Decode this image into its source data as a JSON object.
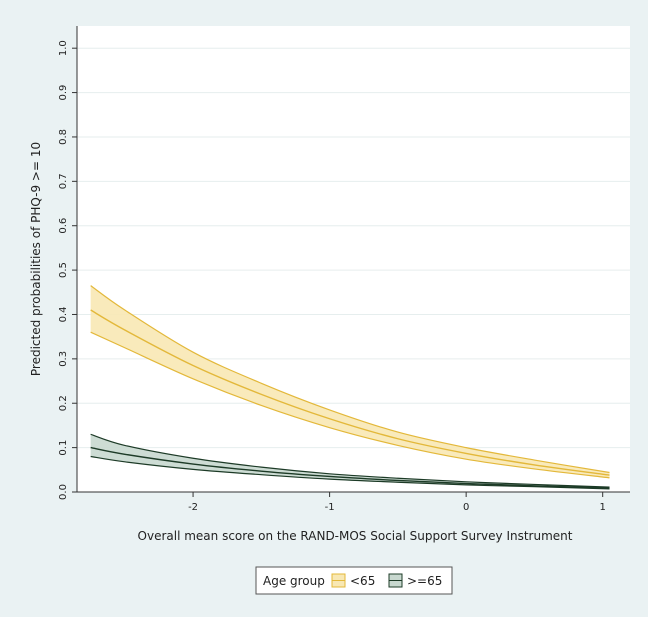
{
  "chart_data": {
    "type": "line",
    "title": "",
    "xlabel": "Overall mean score on the RAND-MOS Social Support Survey Instrument",
    "ylabel": "Predicted probabilities of PHQ-9 >= 10",
    "xlim": [
      -2.85,
      1.2
    ],
    "ylim": [
      0,
      1.05
    ],
    "xticks": [
      -2,
      -1,
      0,
      1
    ],
    "yticks": [
      0.0,
      0.1,
      0.2,
      0.3,
      0.4,
      0.5,
      0.6,
      0.7,
      0.8,
      0.9,
      1.0
    ],
    "xtick_labels": [
      "-2",
      "-1",
      "0",
      "1"
    ],
    "ytick_labels": [
      "0.0",
      "0.1",
      "0.2",
      "0.3",
      "0.4",
      "0.5",
      "0.6",
      "0.7",
      "0.8",
      "0.9",
      "1.0"
    ],
    "grid": "horizontal",
    "x": [
      -2.75,
      -2.5,
      -2.0,
      -1.5,
      -1.0,
      -0.5,
      0.0,
      0.5,
      1.05
    ],
    "series": [
      {
        "name": "<65",
        "color": "#e3b83a",
        "fill": "#f8e8b4",
        "values": [
          0.41,
          0.365,
          0.285,
          0.22,
          0.165,
          0.12,
          0.087,
          0.061,
          0.038
        ],
        "lower": [
          0.36,
          0.325,
          0.255,
          0.195,
          0.145,
          0.105,
          0.074,
          0.052,
          0.032
        ],
        "upper": [
          0.465,
          0.41,
          0.315,
          0.245,
          0.185,
          0.135,
          0.1,
          0.072,
          0.044
        ]
      },
      {
        "name": ">=65",
        "color": "#1d3b27",
        "fill": "#c8d8cf",
        "values": [
          0.1,
          0.085,
          0.063,
          0.047,
          0.035,
          0.026,
          0.019,
          0.014,
          0.009
        ],
        "lower": [
          0.08,
          0.068,
          0.051,
          0.039,
          0.029,
          0.022,
          0.016,
          0.012,
          0.007
        ],
        "upper": [
          0.13,
          0.105,
          0.076,
          0.056,
          0.041,
          0.031,
          0.023,
          0.017,
          0.011
        ]
      }
    ],
    "legend": {
      "position": "bottom",
      "title": "Age group"
    }
  }
}
